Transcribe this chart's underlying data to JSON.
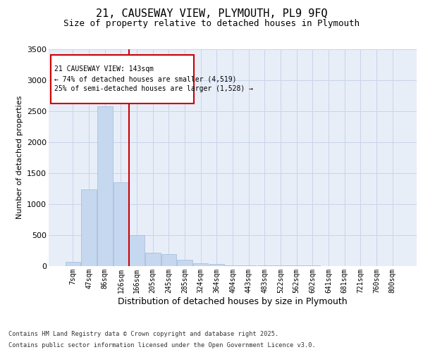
{
  "title_line1": "21, CAUSEWAY VIEW, PLYMOUTH, PL9 9FQ",
  "title_line2": "Size of property relative to detached houses in Plymouth",
  "xlabel": "Distribution of detached houses by size in Plymouth",
  "ylabel": "Number of detached properties",
  "categories": [
    "7sqm",
    "47sqm",
    "86sqm",
    "126sqm",
    "166sqm",
    "205sqm",
    "245sqm",
    "285sqm",
    "324sqm",
    "364sqm",
    "404sqm",
    "443sqm",
    "483sqm",
    "522sqm",
    "562sqm",
    "602sqm",
    "641sqm",
    "681sqm",
    "721sqm",
    "760sqm",
    "800sqm"
  ],
  "values": [
    60,
    1240,
    2580,
    1350,
    490,
    210,
    185,
    100,
    45,
    25,
    10,
    5,
    3,
    2,
    1,
    1,
    0,
    0,
    0,
    0,
    0
  ],
  "bar_color": "#c5d8f0",
  "bar_edge_color": "#a0b8d8",
  "grid_color": "#c8d4e8",
  "bg_color": "#e8eef8",
  "vline_color": "#cc0000",
  "vline_x_index": 3,
  "annotation_line1": "21 CAUSEWAY VIEW: 143sqm",
  "annotation_line2": "← 74% of detached houses are smaller (4,519)",
  "annotation_line3": "25% of semi-detached houses are larger (1,528) →",
  "annotation_box_color": "#cc0000",
  "ylim": [
    0,
    3500
  ],
  "yticks": [
    0,
    500,
    1000,
    1500,
    2000,
    2500,
    3000,
    3500
  ],
  "footer_line1": "Contains HM Land Registry data © Crown copyright and database right 2025.",
  "footer_line2": "Contains public sector information licensed under the Open Government Licence v3.0."
}
